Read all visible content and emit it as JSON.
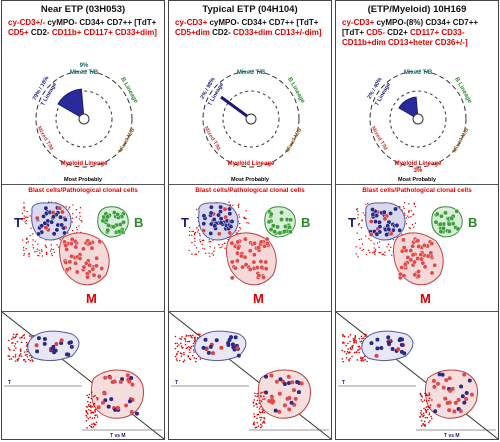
{
  "panels": [
    {
      "title": "Near ETP (03H053)",
      "phenotype_parts": [
        {
          "t": "cy-CD3+/-",
          "red": true
        },
        {
          "t": " cyMPO- ",
          "red": false
        },
        {
          "t": "CD34+ CD7++",
          "red": false
        },
        {
          "t": " [TdT+ ",
          "red": false
        },
        {
          "t": "CD5+",
          "red": true
        },
        {
          "t": " CD2- ",
          "red": false
        },
        {
          "t": "CD11b+ CD117+ CD33+dim]",
          "red": true
        }
      ],
      "radar": {
        "mixed_tb_pct": "9%",
        "t_label": "T Lineage",
        "t_pcts": "79% / 18%",
        "b_label": "B Lineage",
        "mixed_mb": "Mixed M/B",
        "mixed_tm": "Mixed T/M",
        "myeloid": "Myeloid Lineage",
        "myeloid_pct": "",
        "t_fraction": 0.79
      },
      "cluster_labels": {
        "t": "T",
        "b": "B",
        "m": "M"
      },
      "scatter_labels": {
        "t": "T",
        "tvm": "T vs M"
      }
    },
    {
      "title": "Typical ETP (04H104)",
      "phenotype_parts": [
        {
          "t": "cy-CD3+",
          "red": true
        },
        {
          "t": " cyMPO- ",
          "red": false
        },
        {
          "t": "CD34+ CD7++",
          "red": false
        },
        {
          "t": " [TdT+ ",
          "red": false
        },
        {
          "t": "CD5+dim",
          "red": true
        },
        {
          "t": " CD2- ",
          "red": false
        },
        {
          "t": "CD33+dim CD13+/-dim]",
          "red": true
        }
      ],
      "radar": {
        "mixed_tb_pct": "",
        "t_label": "T Lineage",
        "t_pcts": "2% / 98%",
        "b_label": "B Lineage",
        "mixed_mb": "Mixed M/B",
        "mixed_tm": "Mixed T/M",
        "myeloid": "Myeloid Lineage",
        "myeloid_pct": "",
        "t_fraction": 0.98
      },
      "cluster_labels": {
        "t": "T",
        "b": "B",
        "m": "M"
      },
      "scatter_labels": {
        "t": "T",
        "tvm": ""
      }
    },
    {
      "title": "(ETP/Myeloid) 10H169",
      "phenotype_parts": [
        {
          "t": "cy-CD3+",
          "red": true
        },
        {
          "t": " cyMPO-(8%) ",
          "red": false
        },
        {
          "t": "CD34+ CD7++",
          "red": false
        },
        {
          "t": " [TdT+ ",
          "red": false
        },
        {
          "t": "CD5-",
          "red": true
        },
        {
          "t": " CD2+ ",
          "red": false
        },
        {
          "t": "CD117+ CD33- CD11b+dim CD13+heter CD36+/-]",
          "red": true
        }
      ],
      "radar": {
        "mixed_tb_pct": "",
        "t_label": "T Lineage",
        "t_pcts": "2% / 40%",
        "b_label": "B Lineage",
        "mixed_mb": "Mixed M/B",
        "mixed_tm": "Mixed T/M",
        "myeloid": "Myeloid Lineage",
        "myeloid_pct": "3%",
        "t_fraction": 0.4
      },
      "cluster_labels": {
        "t": "T",
        "b": "B",
        "m": "M"
      },
      "scatter_labels": {
        "t": "T",
        "tvm": "T vs M"
      }
    }
  ],
  "common": {
    "most_probably": "Most Probably",
    "blast_title": "Blast cells/Pathological clonal cells"
  },
  "colors": {
    "red": "#e00000",
    "navy": "#1a1a7a",
    "green": "#2a8a2a",
    "brown": "#8a5a1a",
    "teal": "#1a6a6a"
  }
}
